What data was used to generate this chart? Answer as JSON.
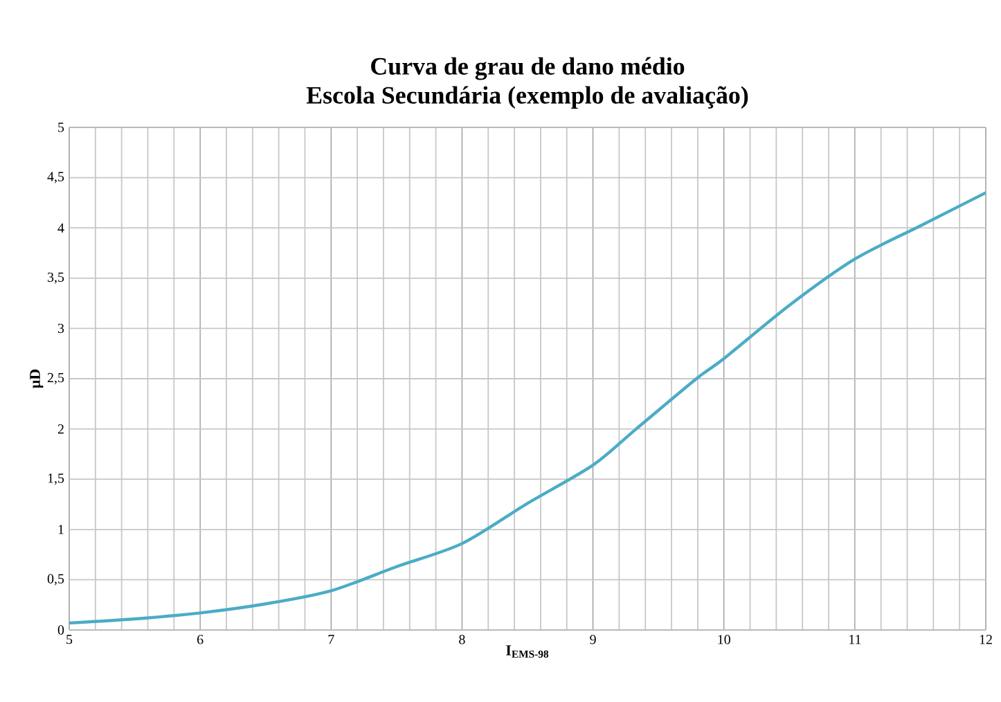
{
  "chart_data": {
    "type": "line",
    "title": "Curva de grau de dano médio\nEscola Secundária (exemplo de avaliação)",
    "xlabel": "I$_{EMS-98}$",
    "ylabel": "µD",
    "x": [
      5,
      5.5,
      6,
      6.5,
      7,
      7.5,
      8,
      8.5,
      9,
      9.33,
      9.79,
      10,
      10.5,
      11,
      11.5,
      12
    ],
    "series": [
      {
        "color": "#4bacc6",
        "values": [
          0.07,
          0.11,
          0.17,
          0.26,
          0.39,
          0.63,
          0.86,
          1.26,
          1.64,
          2.0,
          2.5,
          2.7,
          3.23,
          3.69,
          4.02,
          4.35
        ]
      }
    ],
    "xlim": [
      5,
      12
    ],
    "xticks": [
      5,
      6,
      7,
      8,
      9,
      10,
      11,
      12
    ],
    "ylim": [
      0,
      5
    ],
    "yticks": [
      0,
      {
        "value": 0.5,
        "label": "0,5"
      },
      1,
      {
        "value": 1.5,
        "label": "1,5"
      },
      2,
      {
        "value": 2.5,
        "label": "2,5"
      },
      3,
      {
        "value": 3.5,
        "label": "3,5"
      },
      4,
      {
        "value": 4.5,
        "label": "4,5"
      },
      5
    ],
    "grid": true,
    "marker": "none",
    "line_style": "solid"
  }
}
